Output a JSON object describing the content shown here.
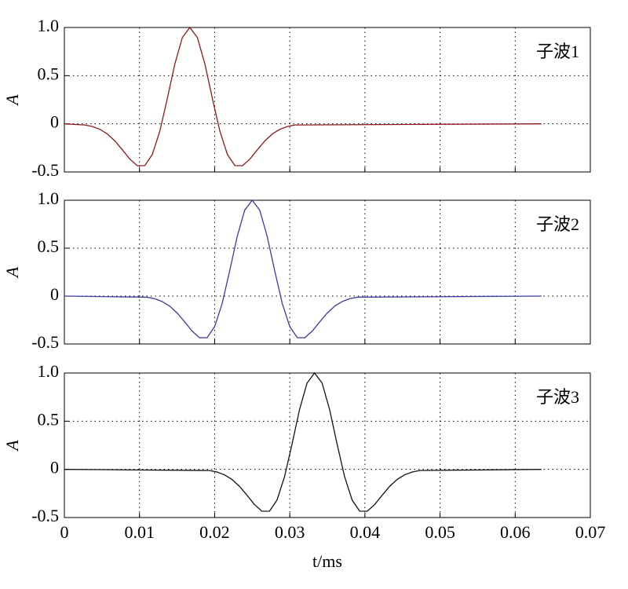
{
  "chart_data": [
    {
      "type": "line",
      "ylabel": "A",
      "annotation": "子波1",
      "color": "#8b1a1a",
      "x": [
        0,
        0.0027,
        0.0037,
        0.0047,
        0.0057,
        0.0067,
        0.0077,
        0.0087,
        0.0097,
        0.0107,
        0.0117,
        0.0127,
        0.0137,
        0.0147,
        0.0157,
        0.0167,
        0.0177,
        0.0187,
        0.0197,
        0.0207,
        0.0217,
        0.0227,
        0.0237,
        0.0247,
        0.0257,
        0.0267,
        0.0277,
        0.0287,
        0.0297,
        0.0307,
        0.0635
      ],
      "values": [
        0,
        -0.012,
        -0.027,
        -0.056,
        -0.104,
        -0.176,
        -0.268,
        -0.365,
        -0.435,
        -0.434,
        -0.319,
        -0.077,
        0.262,
        0.621,
        0.896,
        1,
        0.896,
        0.621,
        0.262,
        -0.077,
        -0.319,
        -0.434,
        -0.435,
        -0.365,
        -0.268,
        -0.176,
        -0.104,
        -0.056,
        -0.027,
        -0.012,
        0
      ],
      "xlim": [
        0,
        0.07
      ],
      "xticks": [
        0,
        0.01,
        0.02,
        0.03,
        0.04,
        0.05,
        0.06,
        0.07
      ],
      "ylim": [
        -0.5,
        1
      ],
      "yticks": [
        -0.5,
        0,
        0.5,
        {
          "value": 1,
          "label": "1.0"
        }
      ],
      "grid": true
    },
    {
      "type": "line",
      "ylabel": "A",
      "annotation": "子波2",
      "color": "#3c3c9c",
      "x": [
        0,
        0.011,
        0.012,
        0.013,
        0.014,
        0.015,
        0.016,
        0.017,
        0.018,
        0.019,
        0.02,
        0.021,
        0.022,
        0.023,
        0.024,
        0.025,
        0.026,
        0.027,
        0.028,
        0.029,
        0.03,
        0.031,
        0.032,
        0.033,
        0.034,
        0.035,
        0.036,
        0.037,
        0.038,
        0.039,
        0.0635
      ],
      "values": [
        0,
        -0.012,
        -0.027,
        -0.056,
        -0.104,
        -0.176,
        -0.268,
        -0.365,
        -0.435,
        -0.434,
        -0.319,
        -0.077,
        0.262,
        0.621,
        0.896,
        1,
        0.896,
        0.621,
        0.262,
        -0.077,
        -0.319,
        -0.434,
        -0.435,
        -0.365,
        -0.268,
        -0.176,
        -0.104,
        -0.056,
        -0.027,
        -0.012,
        0
      ],
      "xlim": [
        0,
        0.07
      ],
      "xticks": [
        0,
        0.01,
        0.02,
        0.03,
        0.04,
        0.05,
        0.06,
        0.07
      ],
      "ylim": [
        -0.5,
        1
      ],
      "yticks": [
        -0.5,
        0,
        0.5,
        {
          "value": 1,
          "label": "1.0"
        }
      ],
      "grid": true
    },
    {
      "type": "line",
      "ylabel": "A",
      "annotation": "子波3",
      "xlabel": "t/ms",
      "color": "#111111",
      "x": [
        0,
        0.0193,
        0.0203,
        0.0213,
        0.0223,
        0.0233,
        0.0243,
        0.0253,
        0.0263,
        0.0273,
        0.0283,
        0.0293,
        0.0303,
        0.0313,
        0.0323,
        0.0333,
        0.0343,
        0.0353,
        0.0363,
        0.0373,
        0.0383,
        0.0393,
        0.0403,
        0.0413,
        0.0423,
        0.0433,
        0.0443,
        0.0453,
        0.0463,
        0.0473,
        0.0635
      ],
      "values": [
        0,
        -0.012,
        -0.027,
        -0.056,
        -0.104,
        -0.176,
        -0.268,
        -0.365,
        -0.435,
        -0.434,
        -0.319,
        -0.077,
        0.262,
        0.621,
        0.896,
        1,
        0.896,
        0.621,
        0.262,
        -0.077,
        -0.319,
        -0.434,
        -0.435,
        -0.365,
        -0.268,
        -0.176,
        -0.104,
        -0.056,
        -0.027,
        -0.012,
        0
      ],
      "xlim": [
        0,
        0.07
      ],
      "xticks": [
        0,
        0.01,
        0.02,
        0.03,
        0.04,
        0.05,
        0.06,
        0.07
      ],
      "ylim": [
        -0.5,
        1
      ],
      "yticks": [
        -0.5,
        0,
        0.5,
        {
          "value": 1,
          "label": "1.0"
        }
      ],
      "grid": true
    }
  ]
}
